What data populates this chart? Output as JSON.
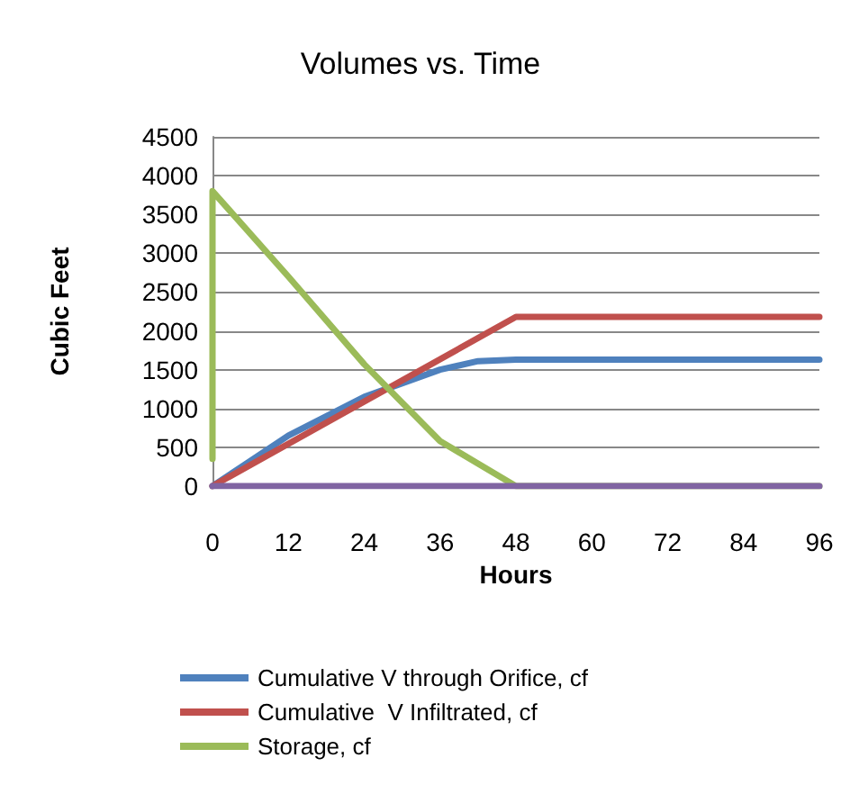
{
  "chart_data": {
    "type": "line",
    "title": "Volumes vs. Time",
    "xlabel": "Hours",
    "ylabel": "Cubic Feet",
    "xlim": [
      0,
      96
    ],
    "xticks": [
      0,
      12,
      24,
      36,
      48,
      60,
      72,
      84,
      96
    ],
    "ylim": [
      0,
      4500
    ],
    "yticks": [
      0,
      500,
      1000,
      1500,
      2000,
      2500,
      3000,
      3500,
      4000,
      4500
    ],
    "grid": "y",
    "legend": "bottom",
    "marker": "none",
    "line_style": "solid",
    "series": [
      {
        "name": "Cumulative V through Orifice, cf",
        "color": "#4f81bd",
        "x": [
          0,
          12,
          24,
          36,
          42,
          48,
          96
        ],
        "values": [
          0,
          650,
          1150,
          1500,
          1610,
          1630,
          1630
        ]
      },
      {
        "name": "Cumulative  V Infiltrated, cf",
        "color": "#c0504d",
        "x": [
          0,
          48,
          96
        ],
        "values": [
          0,
          2180,
          2180
        ]
      },
      {
        "name": "Storage, cf",
        "color": "#9bbb59",
        "x": [
          0,
          0,
          12,
          24,
          36,
          48,
          96
        ],
        "values": [
          350,
          3800,
          2700,
          1570,
          580,
          0,
          0
        ]
      },
      {
        "color": "#8064a2",
        "x": [
          0,
          96
        ],
        "values": [
          0,
          0
        ]
      }
    ]
  }
}
